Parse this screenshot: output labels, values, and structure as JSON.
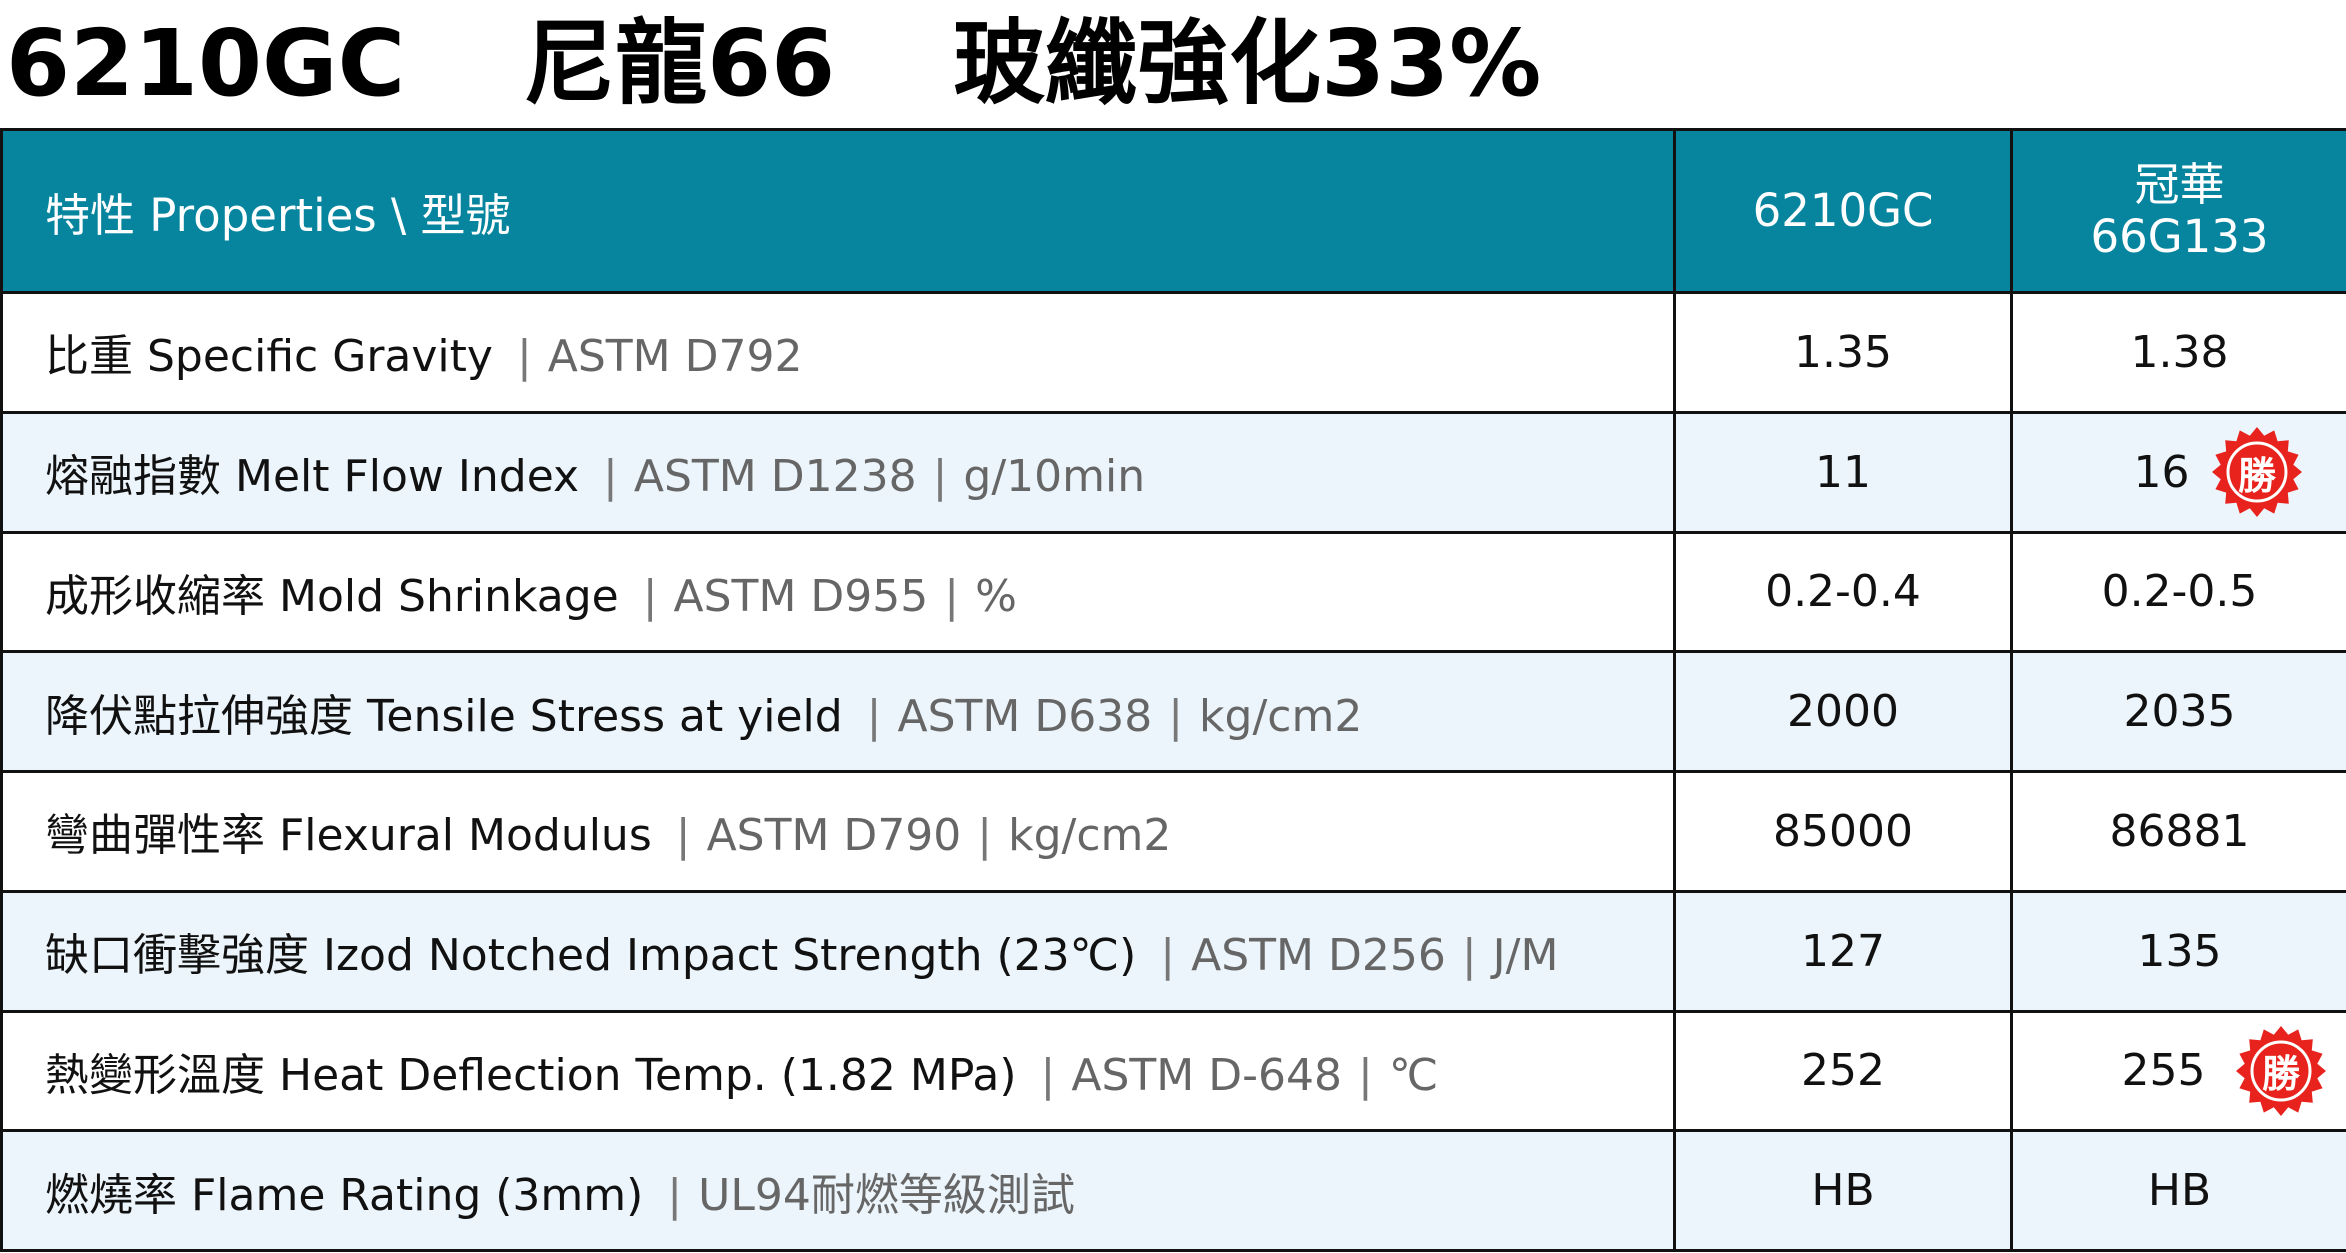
{
  "title": {
    "model": "6210GC",
    "material": "尼龍66",
    "reinforcement": "玻纖強化33%"
  },
  "table": {
    "header": {
      "label": "特性 Properties \\ 型號",
      "col1": "6210GC",
      "col2_line1": "冠華",
      "col2_line2": "66G133"
    },
    "rows": [
      {
        "label": "比重 Specific Gravity",
        "standard": "ASTM D792",
        "unit": "",
        "v1": "1.35",
        "v2": "1.38"
      },
      {
        "label": "熔融指數 Melt Flow Index",
        "standard": "ASTM D1238",
        "unit": "g/10min",
        "v1": "11",
        "v2": "16",
        "badge": "勝"
      },
      {
        "label": "成形收縮率 Mold Shrinkage",
        "standard": "ASTM D955",
        "unit": "%",
        "v1": "0.2-0.4",
        "v2": "0.2-0.5"
      },
      {
        "label": "降伏點拉伸強度 Tensile Stress at yield",
        "standard": "ASTM D638",
        "unit": "kg/cm2",
        "v1": "2000",
        "v2": "2035"
      },
      {
        "label": "彎曲彈性率 Flexural Modulus",
        "standard": "ASTM D790",
        "unit": "kg/cm2",
        "v1": "85000",
        "v2": "86881"
      },
      {
        "label": "缺口衝擊強度 Izod Notched Impact Strength (23℃)",
        "standard": "ASTM D256",
        "unit": "J/M",
        "v1": "127",
        "v2": "135"
      },
      {
        "label": "熱變形溫度 Heat Deflection Temp. (1.82 MPa)",
        "standard": "ASTM D-648",
        "unit": "℃",
        "v1": "252",
        "v2": "255",
        "badge": "勝"
      },
      {
        "label": "燃燒率 Flame Rating (3mm)",
        "standard": "UL94耐燃等級測試",
        "unit": "",
        "v1": "HB",
        "v2": "HB"
      }
    ]
  },
  "colors": {
    "header_bg": "#07859f",
    "alt_row_bg": "#ecf5fb",
    "badge": "#e8231e"
  },
  "icons": {
    "badge": "starburst-badge-icon"
  }
}
